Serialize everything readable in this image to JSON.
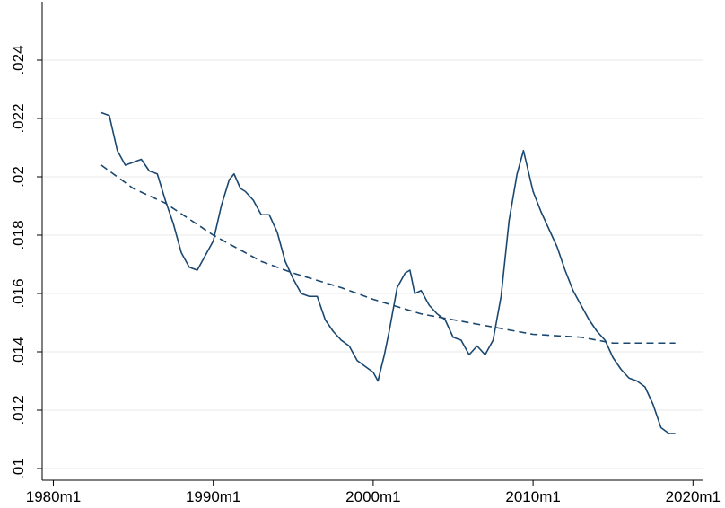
{
  "chart_data": {
    "type": "line",
    "xlim": [
      1979.3,
      2020.6
    ],
    "xticks": [
      {
        "value": 1980,
        "label": "1980m1"
      },
      {
        "value": 1990,
        "label": "1990m1"
      },
      {
        "value": 2000,
        "label": "2000m1"
      },
      {
        "value": 2010,
        "label": "2010m1"
      },
      {
        "value": 2020,
        "label": "2020m1"
      }
    ],
    "ylim": [
      0.0096,
      0.026
    ],
    "yticks": [
      {
        "value": 0.01,
        "label": ".01"
      },
      {
        "value": 0.012,
        "label": ".012"
      },
      {
        "value": 0.014,
        "label": ".014"
      },
      {
        "value": 0.016,
        "label": ".016"
      },
      {
        "value": 0.018,
        "label": ".018"
      },
      {
        "value": 0.02,
        "label": ".02"
      },
      {
        "value": 0.022,
        "label": ".022"
      },
      {
        "value": 0.024,
        "label": ".024"
      }
    ],
    "grid": true,
    "series": [
      {
        "color": "#1a476f",
        "dash": false,
        "x": [
          1983.0,
          1983.5,
          1984.0,
          1984.5,
          1985.0,
          1985.5,
          1986.0,
          1986.5,
          1987.0,
          1987.5,
          1988.0,
          1988.5,
          1989.0,
          1989.5,
          1990.0,
          1990.5,
          1991.0,
          1991.3,
          1991.7,
          1992.0,
          1992.5,
          1993.0,
          1993.5,
          1994.0,
          1994.5,
          1995.0,
          1995.5,
          1996.0,
          1996.5,
          1997.0,
          1997.5,
          1998.0,
          1998.5,
          1999.0,
          1999.5,
          2000.0,
          2000.3,
          2000.7,
          2001.0,
          2001.5,
          2002.0,
          2002.3,
          2002.6,
          2003.0,
          2003.5,
          2004.0,
          2004.5,
          2005.0,
          2005.5,
          2006.0,
          2006.5,
          2007.0,
          2007.5,
          2008.0,
          2008.5,
          2009.0,
          2009.4,
          2009.7,
          2010.0,
          2010.5,
          2011.0,
          2011.5,
          2012.0,
          2012.5,
          2013.0,
          2013.5,
          2014.0,
          2014.5,
          2015.0,
          2015.5,
          2016.0,
          2016.5,
          2017.0,
          2017.5,
          2018.0,
          2018.5,
          2018.9
        ],
        "values": [
          0.0222,
          0.0221,
          0.0209,
          0.0204,
          0.0205,
          0.0206,
          0.0202,
          0.0201,
          0.0192,
          0.0184,
          0.0174,
          0.0169,
          0.0168,
          0.0173,
          0.0178,
          0.019,
          0.0199,
          0.0201,
          0.0196,
          0.0195,
          0.0192,
          0.0187,
          0.0187,
          0.0181,
          0.0171,
          0.0165,
          0.016,
          0.0159,
          0.0159,
          0.0151,
          0.0147,
          0.0144,
          0.0142,
          0.0137,
          0.0135,
          0.0133,
          0.013,
          0.0139,
          0.0147,
          0.0162,
          0.0167,
          0.0168,
          0.016,
          0.0161,
          0.0156,
          0.0153,
          0.0151,
          0.0145,
          0.0144,
          0.0139,
          0.0142,
          0.0139,
          0.0144,
          0.0159,
          0.0185,
          0.0201,
          0.0209,
          0.0202,
          0.0195,
          0.0188,
          0.0182,
          0.0176,
          0.0168,
          0.0161,
          0.0156,
          0.0151,
          0.0147,
          0.0144,
          0.0138,
          0.0134,
          0.0131,
          0.013,
          0.0128,
          0.0122,
          0.0114,
          0.0112,
          0.0112
        ]
      },
      {
        "color": "#1a476f",
        "dash": true,
        "x": [
          1983.0,
          1985.0,
          1987.0,
          1990.0,
          1993.0,
          1995.0,
          1998.0,
          2000.0,
          2003.0,
          2005.0,
          2008.0,
          2010.0,
          2013.0,
          2015.0,
          2018.9
        ],
        "values": [
          0.0204,
          0.0196,
          0.0191,
          0.018,
          0.0171,
          0.0167,
          0.0162,
          0.0158,
          0.0153,
          0.0151,
          0.0148,
          0.0146,
          0.0145,
          0.0143,
          0.0143
        ]
      }
    ]
  }
}
